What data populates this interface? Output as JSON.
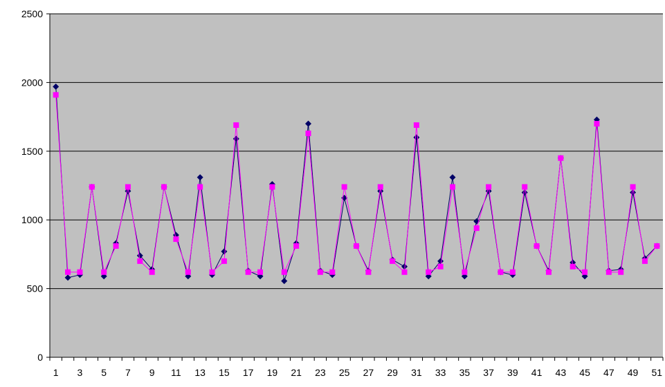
{
  "chart_data": {
    "type": "line",
    "title": "",
    "xlabel": "",
    "ylabel": "",
    "x": [
      1,
      2,
      3,
      4,
      5,
      6,
      7,
      8,
      9,
      10,
      11,
      12,
      13,
      14,
      15,
      16,
      17,
      18,
      19,
      20,
      21,
      22,
      23,
      24,
      25,
      26,
      27,
      28,
      29,
      30,
      31,
      32,
      33,
      34,
      35,
      36,
      37,
      38,
      39,
      40,
      41,
      42,
      43,
      44,
      45,
      46,
      47,
      48,
      49,
      50,
      51
    ],
    "x_tick_labels": [
      "1",
      "3",
      "5",
      "7",
      "9",
      "11",
      "13",
      "15",
      "17",
      "19",
      "21",
      "23",
      "25",
      "27",
      "29",
      "31",
      "33",
      "35",
      "37",
      "39",
      "41",
      "43",
      "45",
      "47",
      "49",
      "51"
    ],
    "y_ticks": [
      "0",
      "500",
      "1000",
      "1500",
      "2000",
      "2500"
    ],
    "ylim": [
      0,
      2500
    ],
    "grid": "horizontal",
    "legend": "none",
    "plot_background": "#c0c0c0",
    "series": [
      {
        "color": "#000066",
        "marker": "diamond",
        "values": [
          1970,
          580,
          600,
          1240,
          590,
          830,
          1210,
          740,
          640,
          1240,
          890,
          590,
          1310,
          600,
          770,
          1590,
          630,
          590,
          1260,
          555,
          830,
          1700,
          630,
          600,
          1160,
          810,
          630,
          1210,
          710,
          660,
          1600,
          590,
          700,
          1310,
          590,
          990,
          1210,
          620,
          600,
          1200,
          810,
          630,
          1450,
          690,
          590,
          1730,
          630,
          640,
          1200,
          720,
          810
        ]
      },
      {
        "color": "#ff00ff",
        "marker": "square",
        "values": [
          1910,
          620,
          620,
          1240,
          620,
          810,
          1240,
          700,
          620,
          1240,
          860,
          620,
          1240,
          620,
          700,
          1690,
          620,
          620,
          1240,
          620,
          810,
          1630,
          620,
          620,
          1240,
          810,
          620,
          1240,
          700,
          620,
          1690,
          620,
          660,
          1240,
          620,
          940,
          1240,
          620,
          620,
          1240,
          810,
          620,
          1450,
          660,
          620,
          1700,
          620,
          620,
          1240,
          700,
          810
        ]
      }
    ]
  }
}
